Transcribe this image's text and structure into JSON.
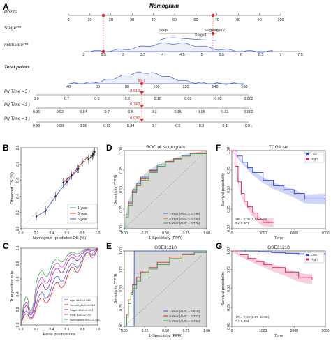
{
  "panel_labels": {
    "A": "A",
    "B": "B",
    "C": "C",
    "D": "D",
    "E": "E",
    "F": "F",
    "G": "G"
  },
  "colors": {
    "accent_red": "#e0241f",
    "density_blue": "#3f5fd6",
    "low_blue": "#2b44d8",
    "high_pink": "#e0245e",
    "roc_fill": "#d8d8d8",
    "green": "#2ea84a",
    "purple": "#8a2aa8",
    "magenta": "#e23ad0"
  },
  "chart_data": [
    {
      "type": "nomogram",
      "panel": "A",
      "title": "Nomogram",
      "rows": [
        {
          "label": "Points",
          "ticks": [
            "0",
            "10",
            "20",
            "30",
            "40",
            "50",
            "60",
            "70",
            "80",
            "90",
            "100"
          ]
        },
        {
          "label": "Stage***",
          "categories": [
            "Stage I",
            "Stage II",
            "Stage III",
            "Stage IV"
          ]
        },
        {
          "label": "riskScore***",
          "ticks": [
            "2",
            "2.5",
            "3",
            "3.5",
            "4",
            "4.5",
            "5",
            "5.5",
            "6",
            "6.5",
            "7",
            "7.5"
          ]
        },
        {
          "label": "Total points",
          "ticks": [
            "40",
            "60",
            "80",
            "100",
            "120",
            "140",
            "160"
          ],
          "marked_value": 89.1
        },
        {
          "label": "Pr( Time > 5 )",
          "ticks": [
            "0.9",
            "0.7",
            "0.5",
            "0.3",
            "0.15",
            "0.05",
            "0.02",
            "0.002"
          ],
          "marked_value": 0.513
        },
        {
          "label": "Pr( Time > 3 )",
          "ticks": [
            "0.96",
            "0.92",
            "0.84",
            "0.7",
            "0.5",
            "0.3",
            "0.15",
            "0.05",
            "0.02",
            "0.002"
          ],
          "marked_value": 0.743
        },
        {
          "label": "Pr( Time > 1 )",
          "ticks": [
            "0.99",
            "0.98",
            "0.96",
            "0.92",
            "0.84",
            "0.7",
            "0.5",
            "0.3",
            "0.1",
            "0.01"
          ],
          "marked_value": 0.932
        }
      ]
    },
    {
      "type": "line",
      "panel": "B",
      "xlabel": "Nomogram−predicted OS (%)",
      "ylabel": "Observed OS (%)",
      "xlim": [
        0,
        1
      ],
      "ylim": [
        0,
        1
      ],
      "xticks": [
        "0.0",
        "0.2",
        "0.4",
        "0.6",
        "0.8",
        "1.0"
      ],
      "yticks": [
        "0.0",
        "0.2",
        "0.4",
        "0.6",
        "0.8",
        "1.0"
      ],
      "legend": "bottom-right",
      "series": [
        {
          "name": "1-year",
          "x": [
            0.88,
            0.91,
            0.93,
            0.94,
            0.96
          ],
          "y": [
            0.86,
            0.88,
            0.9,
            0.92,
            0.95
          ]
        },
        {
          "name": "3-year",
          "x": [
            0.55,
            0.66,
            0.73,
            0.8,
            0.86
          ],
          "y": [
            0.57,
            0.66,
            0.74,
            0.82,
            0.88
          ]
        },
        {
          "name": "5-year",
          "x": [
            0.2,
            0.32,
            0.45,
            0.6,
            0.75
          ],
          "y": [
            0.15,
            0.22,
            0.4,
            0.58,
            0.74
          ]
        }
      ]
    },
    {
      "type": "line",
      "panel": "C",
      "xlabel": "False positive rate",
      "ylabel": "True positive rate",
      "xlim": [
        0,
        1
      ],
      "ylim": [
        0,
        1
      ],
      "xticks": [
        "0.0",
        "0.2",
        "0.4",
        "0.6",
        "0.8",
        "1.0"
      ],
      "yticks": [
        "0.0",
        "0.2",
        "0.4",
        "0.6",
        "0.8",
        "1.0"
      ],
      "legend": "bottom-right",
      "series": [
        {
          "name": "Age, AUC=0.583",
          "color": "#3f5fd6",
          "x": [
            0,
            0.2,
            0.4,
            0.6,
            0.8,
            1
          ],
          "y": [
            0,
            0.27,
            0.5,
            0.7,
            0.86,
            1
          ]
        },
        {
          "name": "Gender, AUC=0.518",
          "color": "#e0241f",
          "x": [
            0,
            0.2,
            0.4,
            0.6,
            0.8,
            1
          ],
          "y": [
            0,
            0.22,
            0.42,
            0.62,
            0.82,
            1
          ]
        },
        {
          "name": "Stage, AUC=0.693",
          "color": "#8a2aa8",
          "x": [
            0,
            0.2,
            0.4,
            0.6,
            0.8,
            1
          ],
          "y": [
            0,
            0.38,
            0.62,
            0.8,
            0.92,
            1
          ]
        },
        {
          "name": "Risk, AUC=0.740",
          "color": "#e23ad0",
          "x": [
            0,
            0.2,
            0.4,
            0.6,
            0.8,
            1
          ],
          "y": [
            0,
            0.45,
            0.7,
            0.86,
            0.95,
            1
          ]
        },
        {
          "name": "Nomogram, AUC=0.786",
          "color": "#2ea84a",
          "x": [
            0,
            0.2,
            0.4,
            0.6,
            0.8,
            1
          ],
          "y": [
            0,
            0.55,
            0.78,
            0.9,
            0.97,
            1
          ]
        }
      ]
    },
    {
      "type": "line",
      "panel": "D",
      "title": "ROC of Nomogram",
      "xlabel": "1-Specificity (FPR)",
      "ylabel": "Sensitivity (TPR)",
      "xlim": [
        0,
        1
      ],
      "ylim": [
        0,
        1
      ],
      "xticks": [
        "0.00",
        "0.25",
        "0.50",
        "0.75",
        "1.00"
      ],
      "yticks": [
        "0.00",
        "0.25",
        "0.50",
        "0.75",
        "1.00"
      ],
      "legend": "bottom-right",
      "series": [
        {
          "name": "1-Year (AUC = 0.798)",
          "color": "#3f5fd6",
          "x": [
            0,
            0.02,
            0.05,
            0.1,
            0.15,
            0.2,
            0.3,
            0.4,
            0.5,
            0.6,
            0.7,
            0.8,
            1
          ],
          "y": [
            0,
            0.2,
            0.35,
            0.5,
            0.58,
            0.66,
            0.75,
            0.82,
            0.86,
            0.9,
            0.94,
            0.97,
            1
          ]
        },
        {
          "name": "3-Year (AUC = 0.789)",
          "color": "#e0241f",
          "x": [
            0,
            0.02,
            0.05,
            0.1,
            0.15,
            0.2,
            0.3,
            0.4,
            0.5,
            0.6,
            0.7,
            0.8,
            1
          ],
          "y": [
            0,
            0.18,
            0.33,
            0.48,
            0.56,
            0.64,
            0.74,
            0.8,
            0.86,
            0.9,
            0.93,
            0.97,
            1
          ]
        },
        {
          "name": "5-Year (AUC = 0.776)",
          "color": "#2ea84a",
          "x": [
            0,
            0.02,
            0.05,
            0.1,
            0.15,
            0.2,
            0.3,
            0.4,
            0.5,
            0.6,
            0.7,
            0.8,
            1
          ],
          "y": [
            0,
            0.15,
            0.3,
            0.46,
            0.55,
            0.62,
            0.72,
            0.8,
            0.85,
            0.89,
            0.93,
            0.96,
            1
          ]
        }
      ]
    },
    {
      "type": "line",
      "panel": "E",
      "title": "GSE31210",
      "xlabel": "1-Specificity (FPR)",
      "ylabel": "Sensitivity (TPR)",
      "xlim": [
        0,
        1
      ],
      "ylim": [
        0,
        1
      ],
      "xticks": [
        "0.00",
        "0.25",
        "0.50",
        "0.75",
        "1.00"
      ],
      "yticks": [
        "0.00",
        "0.25",
        "0.50",
        "0.75",
        "1.00"
      ],
      "legend": "bottom-right",
      "series": [
        {
          "name": "1-Year (AUC = 0.918)",
          "color": "#3f5fd6",
          "x": [
            0,
            0.0,
            0.1,
            0.12,
            1
          ],
          "y": [
            0,
            0.0,
            0.0,
            1,
            1
          ]
        },
        {
          "name": "3-Year (AUC = 0.777)",
          "color": "#e0241f",
          "x": [
            0,
            0.03,
            0.05,
            0.08,
            0.1,
            0.15,
            0.2,
            0.3,
            0.4,
            0.55,
            0.7,
            0.85,
            1
          ],
          "y": [
            0,
            0.15,
            0.35,
            0.45,
            0.55,
            0.65,
            0.72,
            0.78,
            0.85,
            0.92,
            0.96,
            0.98,
            1
          ]
        },
        {
          "name": "5-Year (AUC = 0.744)",
          "color": "#2ea84a",
          "x": [
            0,
            0.03,
            0.05,
            0.08,
            0.1,
            0.15,
            0.2,
            0.3,
            0.4,
            0.55,
            0.7,
            0.85,
            1
          ],
          "y": [
            0,
            0.12,
            0.3,
            0.42,
            0.5,
            0.6,
            0.68,
            0.76,
            0.82,
            0.9,
            0.95,
            0.98,
            1
          ]
        }
      ]
    },
    {
      "type": "line",
      "panel": "F",
      "title": "TCGA set",
      "xlabel": "Time",
      "ylabel": "Survival probability",
      "xlim": [
        0,
        9000
      ],
      "ylim": [
        0,
        1
      ],
      "xticks": [
        "0",
        "3000",
        "6000",
        "9000"
      ],
      "yticks": [
        "0.00",
        "0.25",
        "0.50",
        "0.75",
        "1.00"
      ],
      "legend": "top-right",
      "annotation": [
        "HR = 3.79 (2.66-5.19)",
        "P < 0.001"
      ],
      "series": [
        {
          "name": "Low",
          "color": "#2b44d8",
          "x": [
            0,
            500,
            1000,
            1500,
            2000,
            3000,
            4000,
            5000,
            6000,
            7000,
            8000,
            9000
          ],
          "y": [
            1,
            0.93,
            0.85,
            0.78,
            0.72,
            0.62,
            0.55,
            0.5,
            0.45,
            0.38,
            0.38,
            0.38
          ]
        },
        {
          "name": "High",
          "color": "#e0245e",
          "x": [
            0,
            300,
            600,
            900,
            1200,
            1500,
            2000,
            2500,
            3000,
            3500,
            4000
          ],
          "y": [
            1,
            0.8,
            0.6,
            0.45,
            0.35,
            0.28,
            0.2,
            0.12,
            0.08,
            0.08,
            0.08
          ]
        }
      ]
    },
    {
      "type": "line",
      "panel": "G",
      "title": "GSE31210",
      "xlabel": "Time",
      "ylabel": "Survival probability",
      "xlim": [
        0,
        3500
      ],
      "ylim": [
        0,
        1
      ],
      "xticks": [
        "0",
        "1000",
        "2000",
        "3000"
      ],
      "yticks": [
        "0.00",
        "0.25",
        "0.50",
        "0.75",
        "1.00"
      ],
      "legend": "top-right",
      "annotation": [
        "HR = 7.23 (2.89-18.65)",
        "P < 0.001"
      ],
      "series": [
        {
          "name": "Low",
          "color": "#2b44d8",
          "x": [
            0,
            500,
            1000,
            1500,
            2000,
            2500,
            3000,
            3500
          ],
          "y": [
            1,
            1,
            0.99,
            0.98,
            0.97,
            0.96,
            0.96,
            0.96
          ]
        },
        {
          "name": "High",
          "color": "#e0245e",
          "x": [
            0,
            300,
            600,
            900,
            1200,
            1500,
            2000,
            2500,
            3000
          ],
          "y": [
            1,
            0.95,
            0.9,
            0.86,
            0.82,
            0.78,
            0.72,
            0.65,
            0.62
          ]
        }
      ]
    }
  ]
}
